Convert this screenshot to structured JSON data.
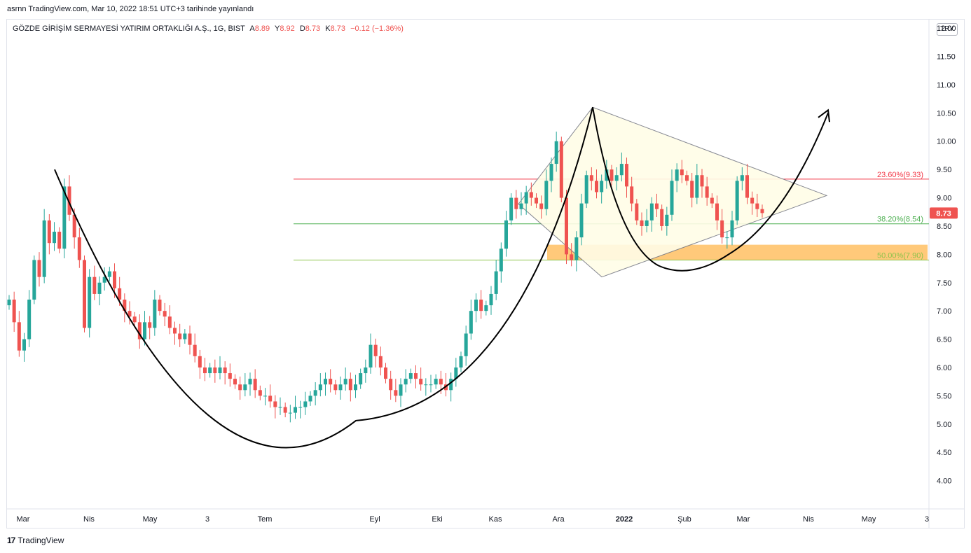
{
  "header": {
    "published_line": "asrnn TradingView.com, Mar 10, 2022 18:51 UTC+3 tarihinde yayınlandı"
  },
  "legend": {
    "symbol": "GÖZDE GİRİŞİM SERMAYESİ YATIRIM ORTAKLIĞI A.Ş., 1G, BIST",
    "open_label": "A",
    "open": "8.89",
    "high_label": "Y",
    "high": "8.92",
    "low_label": "D",
    "low": "8.73",
    "close_label": "K",
    "close": "8.73",
    "change": "−0.12 (−1.36%)"
  },
  "currency_button": "TRY",
  "footer": {
    "brand": "TradingView",
    "logo_glyph": "17"
  },
  "colors": {
    "up": "#26a69a",
    "down": "#ef5350",
    "fib_236": "#f23645",
    "fib_382": "#4caf50",
    "fib_50": "#8bc34a",
    "zone": "#ffb74d",
    "triangle_fill": "#fffde7"
  },
  "chart_data": {
    "type": "candlestick",
    "ylim": [
      3.5,
      12.15
    ],
    "y_ticks": [
      "12.00",
      "11.50",
      "11.00",
      "10.50",
      "10.00",
      "9.50",
      "9.00",
      "8.50",
      "8.00",
      "7.50",
      "7.00",
      "6.50",
      "6.00",
      "5.50",
      "5.00",
      "4.50",
      "4.00"
    ],
    "x_ticks": [
      "Mar",
      "Nis",
      "May",
      "3",
      "Tem",
      "Eyl",
      "Eki",
      "Kas",
      "Ara",
      "2022",
      "Şub",
      "Mar",
      "Nis",
      "May",
      "3"
    ],
    "last_price": 8.73,
    "last_price_label": "8.73",
    "fib_levels": [
      {
        "label": "23.60%(9.33)",
        "value": 9.33
      },
      {
        "label": "38.20%(8.54)",
        "value": 8.54
      },
      {
        "label": "50.00%(7.90)",
        "value": 7.9
      }
    ],
    "support_zone": [
      7.9,
      8.17
    ],
    "closes": [
      7.2,
      6.8,
      6.3,
      6.5,
      7.2,
      7.9,
      7.6,
      8.6,
      8.2,
      8.4,
      8.1,
      9.2,
      8.7,
      8.3,
      7.9,
      6.7,
      7.6,
      7.3,
      7.5,
      7.6,
      7.7,
      7.4,
      7.2,
      7.0,
      6.9,
      6.8,
      6.5,
      6.8,
      6.7,
      7.2,
      7.0,
      6.9,
      6.7,
      6.6,
      6.5,
      6.6,
      6.4,
      6.2,
      6.0,
      5.9,
      6.0,
      5.9,
      6.0,
      5.9,
      5.8,
      5.7,
      5.6,
      5.7,
      5.8,
      5.6,
      5.5,
      5.5,
      5.4,
      5.3,
      5.3,
      5.2,
      5.2,
      5.3,
      5.3,
      5.4,
      5.5,
      5.6,
      5.7,
      5.8,
      5.7,
      5.6,
      5.7,
      5.8,
      5.6,
      5.7,
      5.9,
      6.0,
      6.4,
      6.2,
      6.0,
      5.8,
      5.6,
      5.5,
      5.7,
      5.8,
      5.9,
      5.8,
      5.7,
      5.7,
      5.7,
      5.8,
      5.7,
      5.6,
      5.8,
      6.0,
      6.2,
      6.6,
      7.0,
      7.2,
      7.0,
      7.1,
      7.3,
      7.7,
      8.1,
      8.6,
      9.0,
      8.8,
      8.9,
      9.1,
      9.0,
      8.9,
      8.8,
      9.3,
      9.6,
      10.0,
      9.0,
      8.0,
      7.9,
      8.3,
      8.9,
      9.4,
      9.3,
      9.1,
      9.3,
      9.5,
      9.3,
      9.4,
      9.6,
      9.2,
      8.9,
      8.6,
      8.5,
      8.6,
      8.9,
      8.8,
      8.5,
      8.7,
      9.3,
      9.5,
      9.4,
      9.3,
      9.0,
      9.4,
      9.2,
      9.0,
      8.9,
      8.6,
      8.3,
      8.3,
      8.6,
      9.3,
      9.4,
      9.0,
      8.9,
      8.8,
      8.73
    ],
    "curve_points": [
      [
        9.5,
        "Mar"
      ],
      [
        5.06,
        "Tem-Eyl"
      ],
      [
        10.6,
        "Ara"
      ],
      [
        7.68,
        "Şub"
      ],
      [
        10.5,
        "Nis"
      ]
    ],
    "triangle_vertices_price": [
      [
        10.6,
        "Ara"
      ],
      [
        9.04,
        "Nis"
      ],
      [
        7.6,
        "Ara"
      ],
      [
        8.89,
        "Ara"
      ]
    ]
  }
}
